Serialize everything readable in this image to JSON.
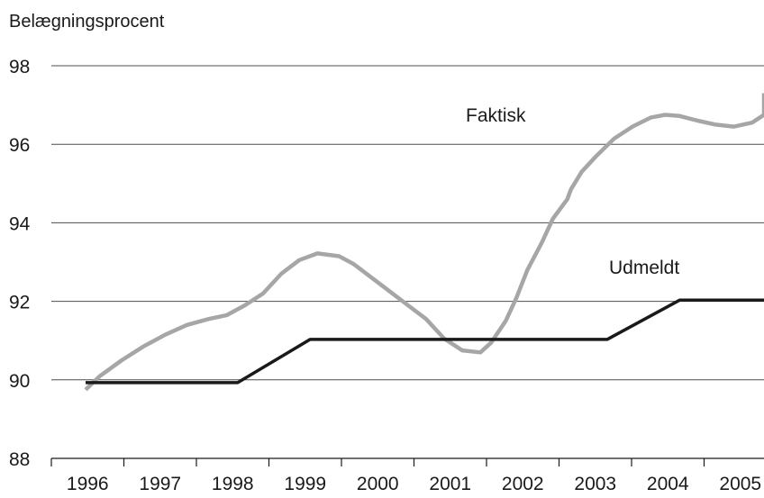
{
  "chart_data": {
    "type": "line",
    "title": "",
    "ylabel": "Belægningsprocent",
    "xlabel": "",
    "ylim": [
      88,
      98
    ],
    "yticks": [
      98,
      96,
      94,
      92,
      90,
      88
    ],
    "grid": "horizontal",
    "categories": [
      "1996",
      "1997",
      "1998",
      "1999",
      "2000",
      "2001",
      "2002",
      "2003",
      "2004",
      "2005"
    ],
    "series": [
      {
        "name": "Faktisk",
        "color": "#a6a6a6",
        "points": [
          [
            1996.0,
            89.75
          ],
          [
            1996.2,
            90.1
          ],
          [
            1996.5,
            90.5
          ],
          [
            1996.8,
            90.85
          ],
          [
            1997.1,
            91.15
          ],
          [
            1997.4,
            91.4
          ],
          [
            1997.7,
            91.55
          ],
          [
            1997.95,
            91.65
          ],
          [
            1998.2,
            91.9
          ],
          [
            1998.45,
            92.2
          ],
          [
            1998.7,
            92.7
          ],
          [
            1998.95,
            93.05
          ],
          [
            1999.2,
            93.22
          ],
          [
            1999.5,
            93.15
          ],
          [
            1999.7,
            92.95
          ],
          [
            1999.95,
            92.6
          ],
          [
            2000.2,
            92.25
          ],
          [
            2000.45,
            91.9
          ],
          [
            2000.7,
            91.55
          ],
          [
            2000.95,
            91.05
          ],
          [
            2001.2,
            90.75
          ],
          [
            2001.45,
            90.7
          ],
          [
            2001.6,
            90.95
          ],
          [
            2001.8,
            91.5
          ],
          [
            2001.95,
            92.1
          ],
          [
            2002.1,
            92.8
          ],
          [
            2002.3,
            93.5
          ],
          [
            2002.45,
            94.1
          ],
          [
            2002.65,
            94.6
          ],
          [
            2002.7,
            94.85
          ],
          [
            2002.85,
            95.3
          ],
          [
            2003.05,
            95.7
          ],
          [
            2003.3,
            96.15
          ],
          [
            2003.55,
            96.45
          ],
          [
            2003.8,
            96.68
          ],
          [
            2004.0,
            96.75
          ],
          [
            2004.2,
            96.72
          ],
          [
            2004.45,
            96.6
          ],
          [
            2004.7,
            96.5
          ],
          [
            2004.95,
            96.45
          ],
          [
            2005.2,
            96.55
          ],
          [
            2005.45,
            96.75
          ],
          [
            2005.7,
            97.0
          ],
          [
            2006.0,
            97.3
          ]
        ]
      },
      {
        "name": "Udmeldt",
        "color": "#1a1a1a",
        "points": [
          [
            1996.0,
            89.93
          ],
          [
            1998.1,
            89.93
          ],
          [
            1999.1,
            91.03
          ],
          [
            2003.2,
            91.03
          ],
          [
            2004.2,
            92.03
          ],
          [
            2006.0,
            92.03
          ]
        ]
      }
    ]
  }
}
